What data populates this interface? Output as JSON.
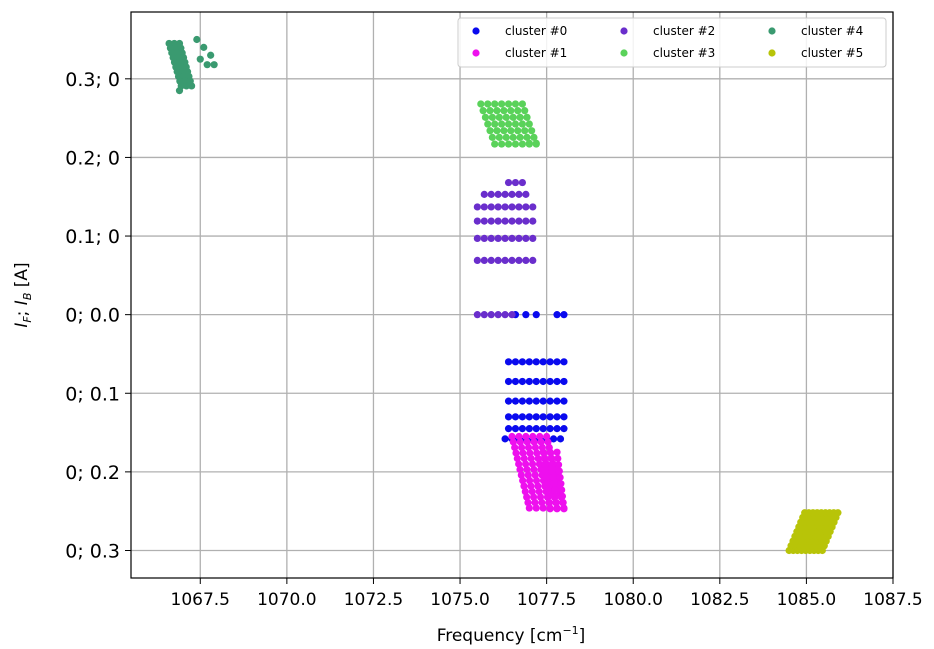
{
  "chart_data": {
    "type": "scatter",
    "title": "",
    "xlabel_main": "Frequency [cm",
    "xlabel_exp": "−1",
    "xlabel_end": "]",
    "ylabel_parts": [
      "I",
      "F",
      "; ",
      "I",
      "B",
      " [A]"
    ],
    "xlim": [
      1065.5,
      1087.5
    ],
    "ylim": [
      -0.335,
      0.385
    ],
    "x_ticks": [
      1067.5,
      1070.0,
      1072.5,
      1075.0,
      1077.5,
      1080.0,
      1082.5,
      1085.0,
      1087.5
    ],
    "x_tick_labels": [
      "1067.5",
      "1070.0",
      "1072.5",
      "1075.0",
      "1077.5",
      "1080.0",
      "1082.5",
      "1085.0",
      "1087.5"
    ],
    "y_ticks": [
      0.3,
      0.2,
      0.1,
      0.0,
      -0.1,
      -0.2,
      -0.3
    ],
    "y_tick_labels": [
      "0.3; 0",
      "0.2; 0",
      "0.1; 0",
      "0; 0.0",
      "0; 0.1",
      "0; 0.2",
      "0; 0.3"
    ],
    "grid": true,
    "legend_position": "top-right",
    "legend_columns": 3,
    "series": [
      {
        "name": "cluster #0",
        "color": "#0a0aee",
        "rows": [
          {
            "y": 0.0,
            "x": [
              1076.6,
              1076.9,
              1077.2,
              1077.8,
              1078.0
            ]
          },
          {
            "y": -0.06,
            "x": [
              1076.4,
              1076.6,
              1076.8,
              1077.0,
              1077.2,
              1077.4,
              1077.6,
              1077.8,
              1078.0
            ]
          },
          {
            "y": -0.085,
            "x": [
              1076.4,
              1076.6,
              1076.8,
              1077.0,
              1077.2,
              1077.4,
              1077.6,
              1077.8,
              1078.0
            ]
          },
          {
            "y": -0.11,
            "x": [
              1076.4,
              1076.6,
              1076.8,
              1077.0,
              1077.2,
              1077.4,
              1077.6,
              1077.8,
              1078.0
            ]
          },
          {
            "y": -0.13,
            "x": [
              1076.4,
              1076.6,
              1076.8,
              1077.0,
              1077.2,
              1077.4,
              1077.6,
              1077.8,
              1078.0
            ]
          },
          {
            "y": -0.145,
            "x": [
              1076.4,
              1076.6,
              1076.8,
              1077.0,
              1077.2,
              1077.4,
              1077.6,
              1077.8,
              1078.0
            ]
          },
          {
            "y": -0.158,
            "x": [
              1076.3,
              1076.5,
              1076.7,
              1076.9,
              1077.1,
              1077.3,
              1077.5,
              1077.7,
              1077.9
            ]
          }
        ]
      },
      {
        "name": "cluster #1",
        "color": "#ee10ee",
        "ranges": [
          {
            "x0": 1076.5,
            "x1": 1077.5,
            "dx": 0.2,
            "shift": 0.5,
            "y0": -0.155,
            "y1": -0.245,
            "dy": 0.007
          },
          {
            "x0": 1077.4,
            "x1": 1077.9,
            "dx": 0.2,
            "shift": 0.2,
            "y0": -0.175,
            "y1": -0.25,
            "dy": 0.008
          }
        ]
      },
      {
        "name": "cluster #2",
        "color": "#6a2ecc",
        "rows": [
          {
            "y": 0.168,
            "x": [
              1076.4,
              1076.6,
              1076.8
            ]
          },
          {
            "y": 0.153,
            "x": [
              1075.7,
              1075.9,
              1076.1,
              1076.3,
              1076.5,
              1076.7,
              1076.9
            ]
          },
          {
            "y": 0.137,
            "x": [
              1075.5,
              1075.7,
              1075.9,
              1076.1,
              1076.3,
              1076.5,
              1076.7,
              1076.9,
              1077.1
            ]
          },
          {
            "y": 0.119,
            "x": [
              1075.5,
              1075.7,
              1075.9,
              1076.1,
              1076.3,
              1076.5,
              1076.7,
              1076.9,
              1077.1
            ]
          },
          {
            "y": 0.097,
            "x": [
              1075.5,
              1075.7,
              1075.9,
              1076.1,
              1076.3,
              1076.5,
              1076.7,
              1076.9,
              1077.1
            ]
          },
          {
            "y": 0.069,
            "x": [
              1075.5,
              1075.7,
              1075.9,
              1076.1,
              1076.3,
              1076.5,
              1076.7,
              1076.9,
              1077.1
            ]
          },
          {
            "y": 0.0,
            "x": [
              1075.5,
              1075.7,
              1075.9,
              1076.1,
              1076.3,
              1076.5
            ]
          }
        ]
      },
      {
        "name": "cluster #3",
        "color": "#5ad25a",
        "ranges": [
          {
            "x0": 1075.6,
            "x1": 1076.8,
            "dx": 0.2,
            "shift": 0.4,
            "y0": 0.268,
            "y1": 0.218,
            "dy": 0.0085
          }
        ],
        "extra": [
          {
            "x": 1077.0,
            "y": 0.218
          },
          {
            "x": 1077.2,
            "y": 0.218
          }
        ]
      },
      {
        "name": "cluster #4",
        "color": "#3a9a70",
        "ranges": [
          {
            "x0": 1066.6,
            "x1": 1067.0,
            "dx": 0.15,
            "shift": 0.35,
            "y0": 0.345,
            "y1": 0.292,
            "dy": 0.006
          }
        ],
        "extra": [
          {
            "x": 1067.4,
            "y": 0.35
          },
          {
            "x": 1067.6,
            "y": 0.34
          },
          {
            "x": 1067.8,
            "y": 0.33
          },
          {
            "x": 1067.5,
            "y": 0.325
          },
          {
            "x": 1067.7,
            "y": 0.318
          },
          {
            "x": 1067.9,
            "y": 0.318
          },
          {
            "x": 1066.9,
            "y": 0.285
          },
          {
            "x": 1067.2,
            "y": 0.292
          }
        ]
      },
      {
        "name": "cluster #5",
        "color": "#b8c408",
        "ranges": [
          {
            "x0": 1084.5,
            "x1": 1085.5,
            "dx": 0.12,
            "shift": 0.45,
            "y0": -0.3,
            "y1": -0.252,
            "dy": 0.006
          }
        ]
      }
    ]
  }
}
